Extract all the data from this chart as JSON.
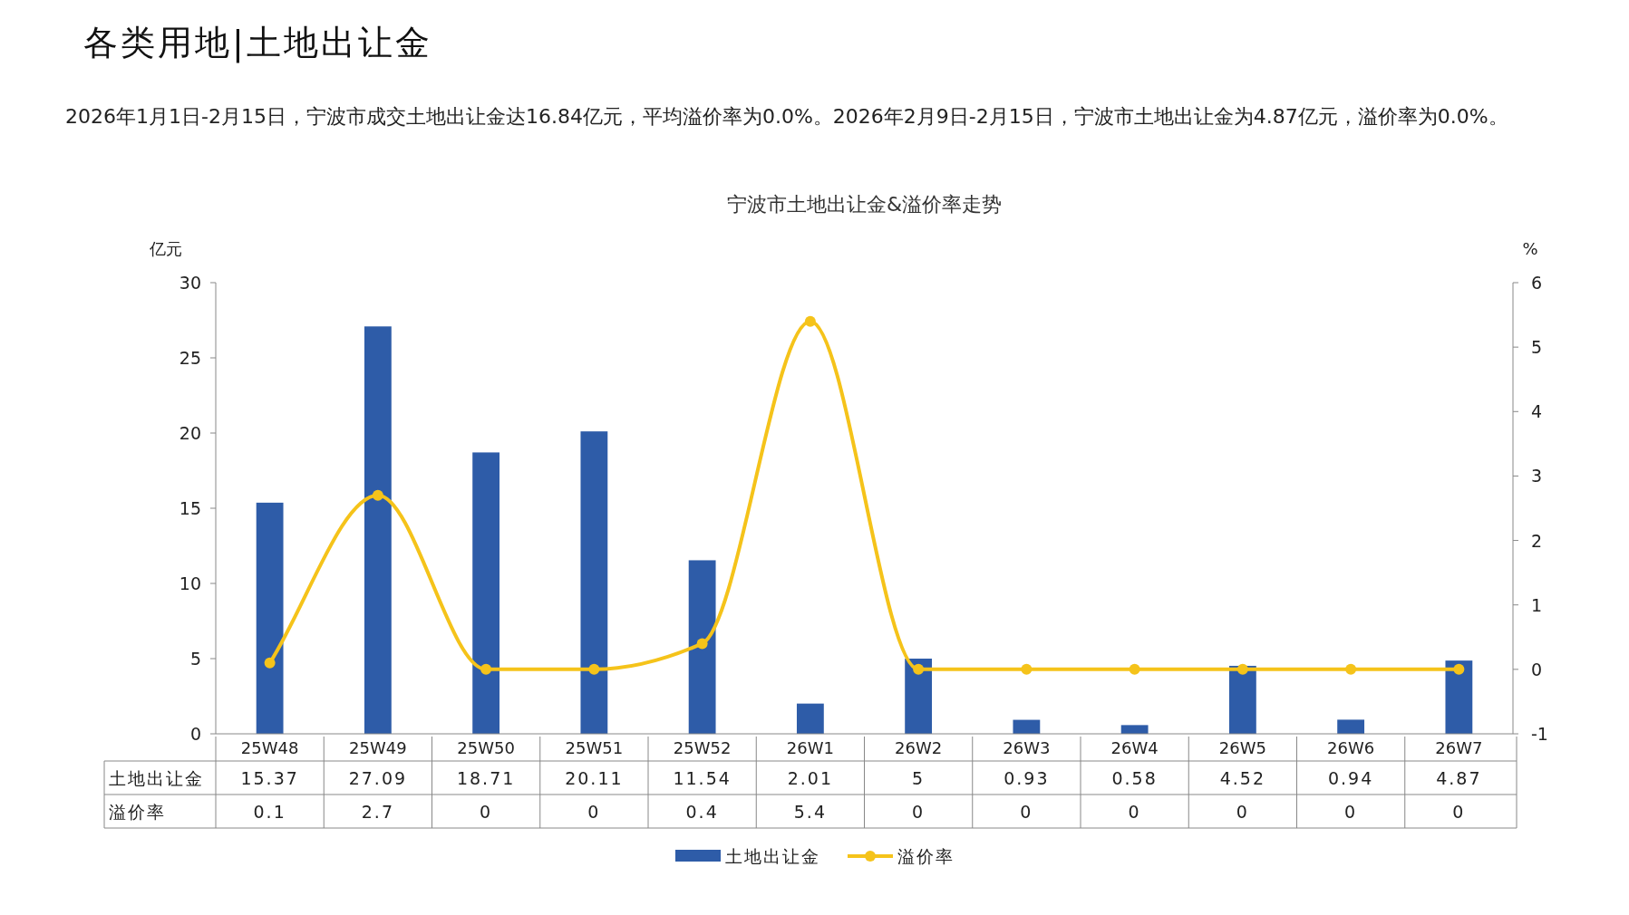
{
  "chart_data": {
    "type": "bar",
    "title": "宁波市土地出让金&溢价率走势",
    "annotations": [
      "各类用地|土地出让金",
      "2026年1月1日-2月15日，宁波市成交土地出让金达16.84亿元，平均溢价率为0.0%。2026年2月9日-2月15日，宁波市土地出让金为4.87亿元，溢价率为0.0%。"
    ],
    "ylabel": "亿元",
    "y2label": "%",
    "categories": [
      "25W48",
      "25W49",
      "25W50",
      "25W51",
      "25W52",
      "26W1",
      "26W2",
      "26W3",
      "26W4",
      "26W5",
      "26W6",
      "26W7"
    ],
    "series": [
      {
        "name": "土地出让金",
        "color": "#2e5ca8",
        "values": [
          15.37,
          27.09,
          18.71,
          20.11,
          11.54,
          2.01,
          5,
          0.93,
          0.58,
          4.52,
          0.94,
          4.87
        ]
      },
      {
        "name": "溢价率",
        "type": "line",
        "axis": "y2",
        "color": "#f5c31a",
        "values": [
          0.1,
          2.7,
          0,
          0,
          0.4,
          5.4,
          0,
          0,
          0,
          0,
          0,
          0
        ]
      }
    ],
    "ylim": [
      0,
      30
    ],
    "yticks": [
      0,
      5,
      10,
      15,
      20,
      25,
      30
    ],
    "y2lim": [
      -1,
      6
    ],
    "y2ticks": [
      -1,
      0,
      1,
      2,
      3,
      4,
      5,
      6
    ],
    "marker": "circle",
    "legend": "bottom",
    "grid": false,
    "data_labels": true
  }
}
